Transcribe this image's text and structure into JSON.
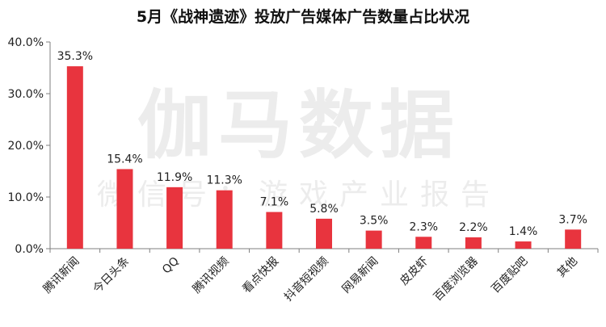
{
  "chart_data": {
    "type": "bar",
    "title": "5月《战神遗迹》投放广告媒体广告数量占比状况",
    "categories": [
      "腾讯新闻",
      "今日头条",
      "QQ",
      "腾讯视频",
      "看点快报",
      "抖音短视频",
      "网易新闻",
      "皮皮虾",
      "百度浏览器",
      "百度贴吧",
      "其他"
    ],
    "values": [
      35.3,
      15.4,
      11.9,
      11.3,
      7.1,
      5.8,
      3.5,
      2.3,
      2.2,
      1.4,
      3.7
    ],
    "data_labels": [
      "35.3%",
      "15.4%",
      "11.9%",
      "11.3%",
      "7.1%",
      "5.8%",
      "3.5%",
      "2.3%",
      "2.2%",
      "1.4%",
      "3.7%"
    ],
    "ylim": [
      0,
      40
    ],
    "yticks": [
      0,
      10,
      20,
      30,
      40
    ],
    "ytick_labels": [
      "0.0%",
      "10.0%",
      "20.0%",
      "30.0%",
      "40.0%"
    ],
    "xlabel": "",
    "ylabel": "",
    "grid": false,
    "legend": "none",
    "bar_color": "#E8343E"
  },
  "watermark": {
    "main": "伽马数据",
    "sub": "微信号：游戏产业报告"
  }
}
